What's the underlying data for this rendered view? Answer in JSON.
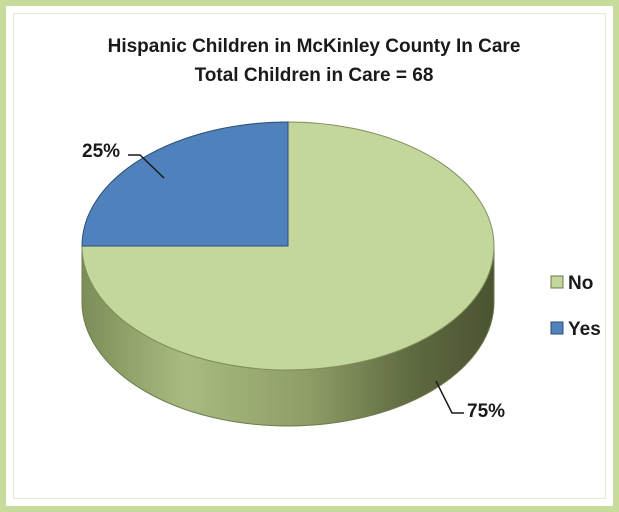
{
  "chart_data": {
    "type": "pie",
    "title": "Hispanic Children in McKinley County In Care",
    "subtitle": "Total Children in Care = 68",
    "categories": [
      "No",
      "Yes"
    ],
    "values": [
      75,
      25
    ],
    "value_labels": [
      "75%",
      "25%"
    ],
    "colors": [
      "#c3d69b",
      "#4f81bd"
    ],
    "legend": [
      "No",
      "Yes"
    ],
    "legend_position": "right",
    "style": "3d"
  }
}
